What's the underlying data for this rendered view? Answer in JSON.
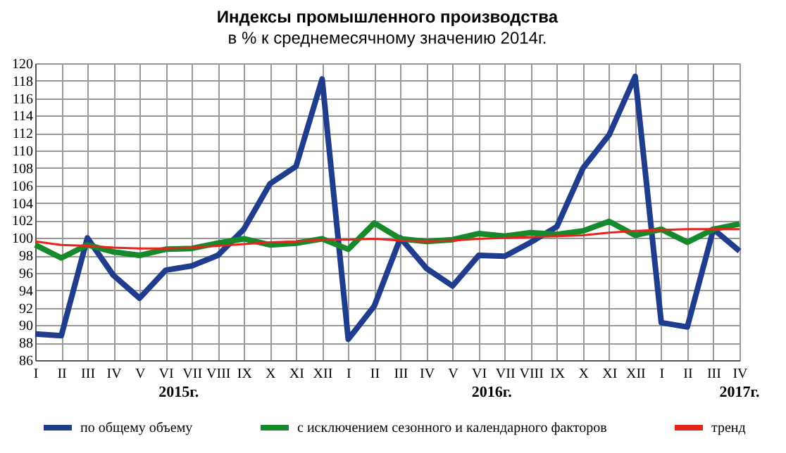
{
  "chart_data": {
    "type": "line",
    "title": "Индексы промышленного производства",
    "subtitle": "в % к среднемесячному значению 2014г.",
    "categories": [
      "I",
      "II",
      "III",
      "IV",
      "V",
      "VI",
      "VII",
      "VIII",
      "IX",
      "X",
      "XI",
      "XII",
      "I",
      "II",
      "III",
      "IV",
      "V",
      "VI",
      "VII",
      "VIII",
      "IX",
      "X",
      "XI",
      "XII",
      "I",
      "II",
      "III",
      "IV"
    ],
    "series": [
      {
        "name": "по общему объему",
        "color": "#1f3d8c",
        "values": [
          89,
          88.8,
          100,
          95.7,
          93.1,
          96.3,
          96.8,
          98,
          101,
          106.2,
          108.2,
          118.2,
          88.4,
          92.2,
          100,
          96.5,
          94.5,
          98,
          97.9,
          99.5,
          101.3,
          108,
          111.8,
          118.5,
          90.3,
          89.8,
          101,
          98.5
        ]
      },
      {
        "name": "с исключением сезонного и календарного факторов",
        "color": "#168a2a",
        "values": [
          99.2,
          97.7,
          99.2,
          98.4,
          98,
          98.7,
          98.8,
          99.4,
          99.9,
          99.2,
          99.4,
          99.9,
          98.7,
          101.7,
          99.9,
          99.6,
          99.8,
          100.5,
          100.2,
          100.6,
          100.4,
          100.8,
          101.9,
          100.3,
          101,
          99.5,
          101,
          101.6
        ]
      },
      {
        "name": "тренд",
        "color": "#e8231c",
        "values": [
          99.6,
          99.2,
          99.1,
          98.9,
          98.8,
          98.8,
          98.9,
          99.1,
          99.3,
          99.5,
          99.6,
          99.8,
          99.8,
          99.9,
          99.7,
          99.6,
          99.7,
          99.9,
          100,
          100.1,
          100.2,
          100.3,
          100.6,
          100.8,
          100.9,
          101,
          101,
          101
        ]
      }
    ],
    "ylim": [
      86,
      120
    ],
    "yticks": [
      86,
      88,
      90,
      92,
      94,
      96,
      98,
      100,
      102,
      104,
      106,
      108,
      110,
      112,
      114,
      116,
      118,
      120
    ],
    "grid": true,
    "legend": "bottom",
    "line_style": "solid",
    "marker": "none",
    "annotations": [
      "2015г.",
      "2016г.",
      "2017г."
    ]
  }
}
